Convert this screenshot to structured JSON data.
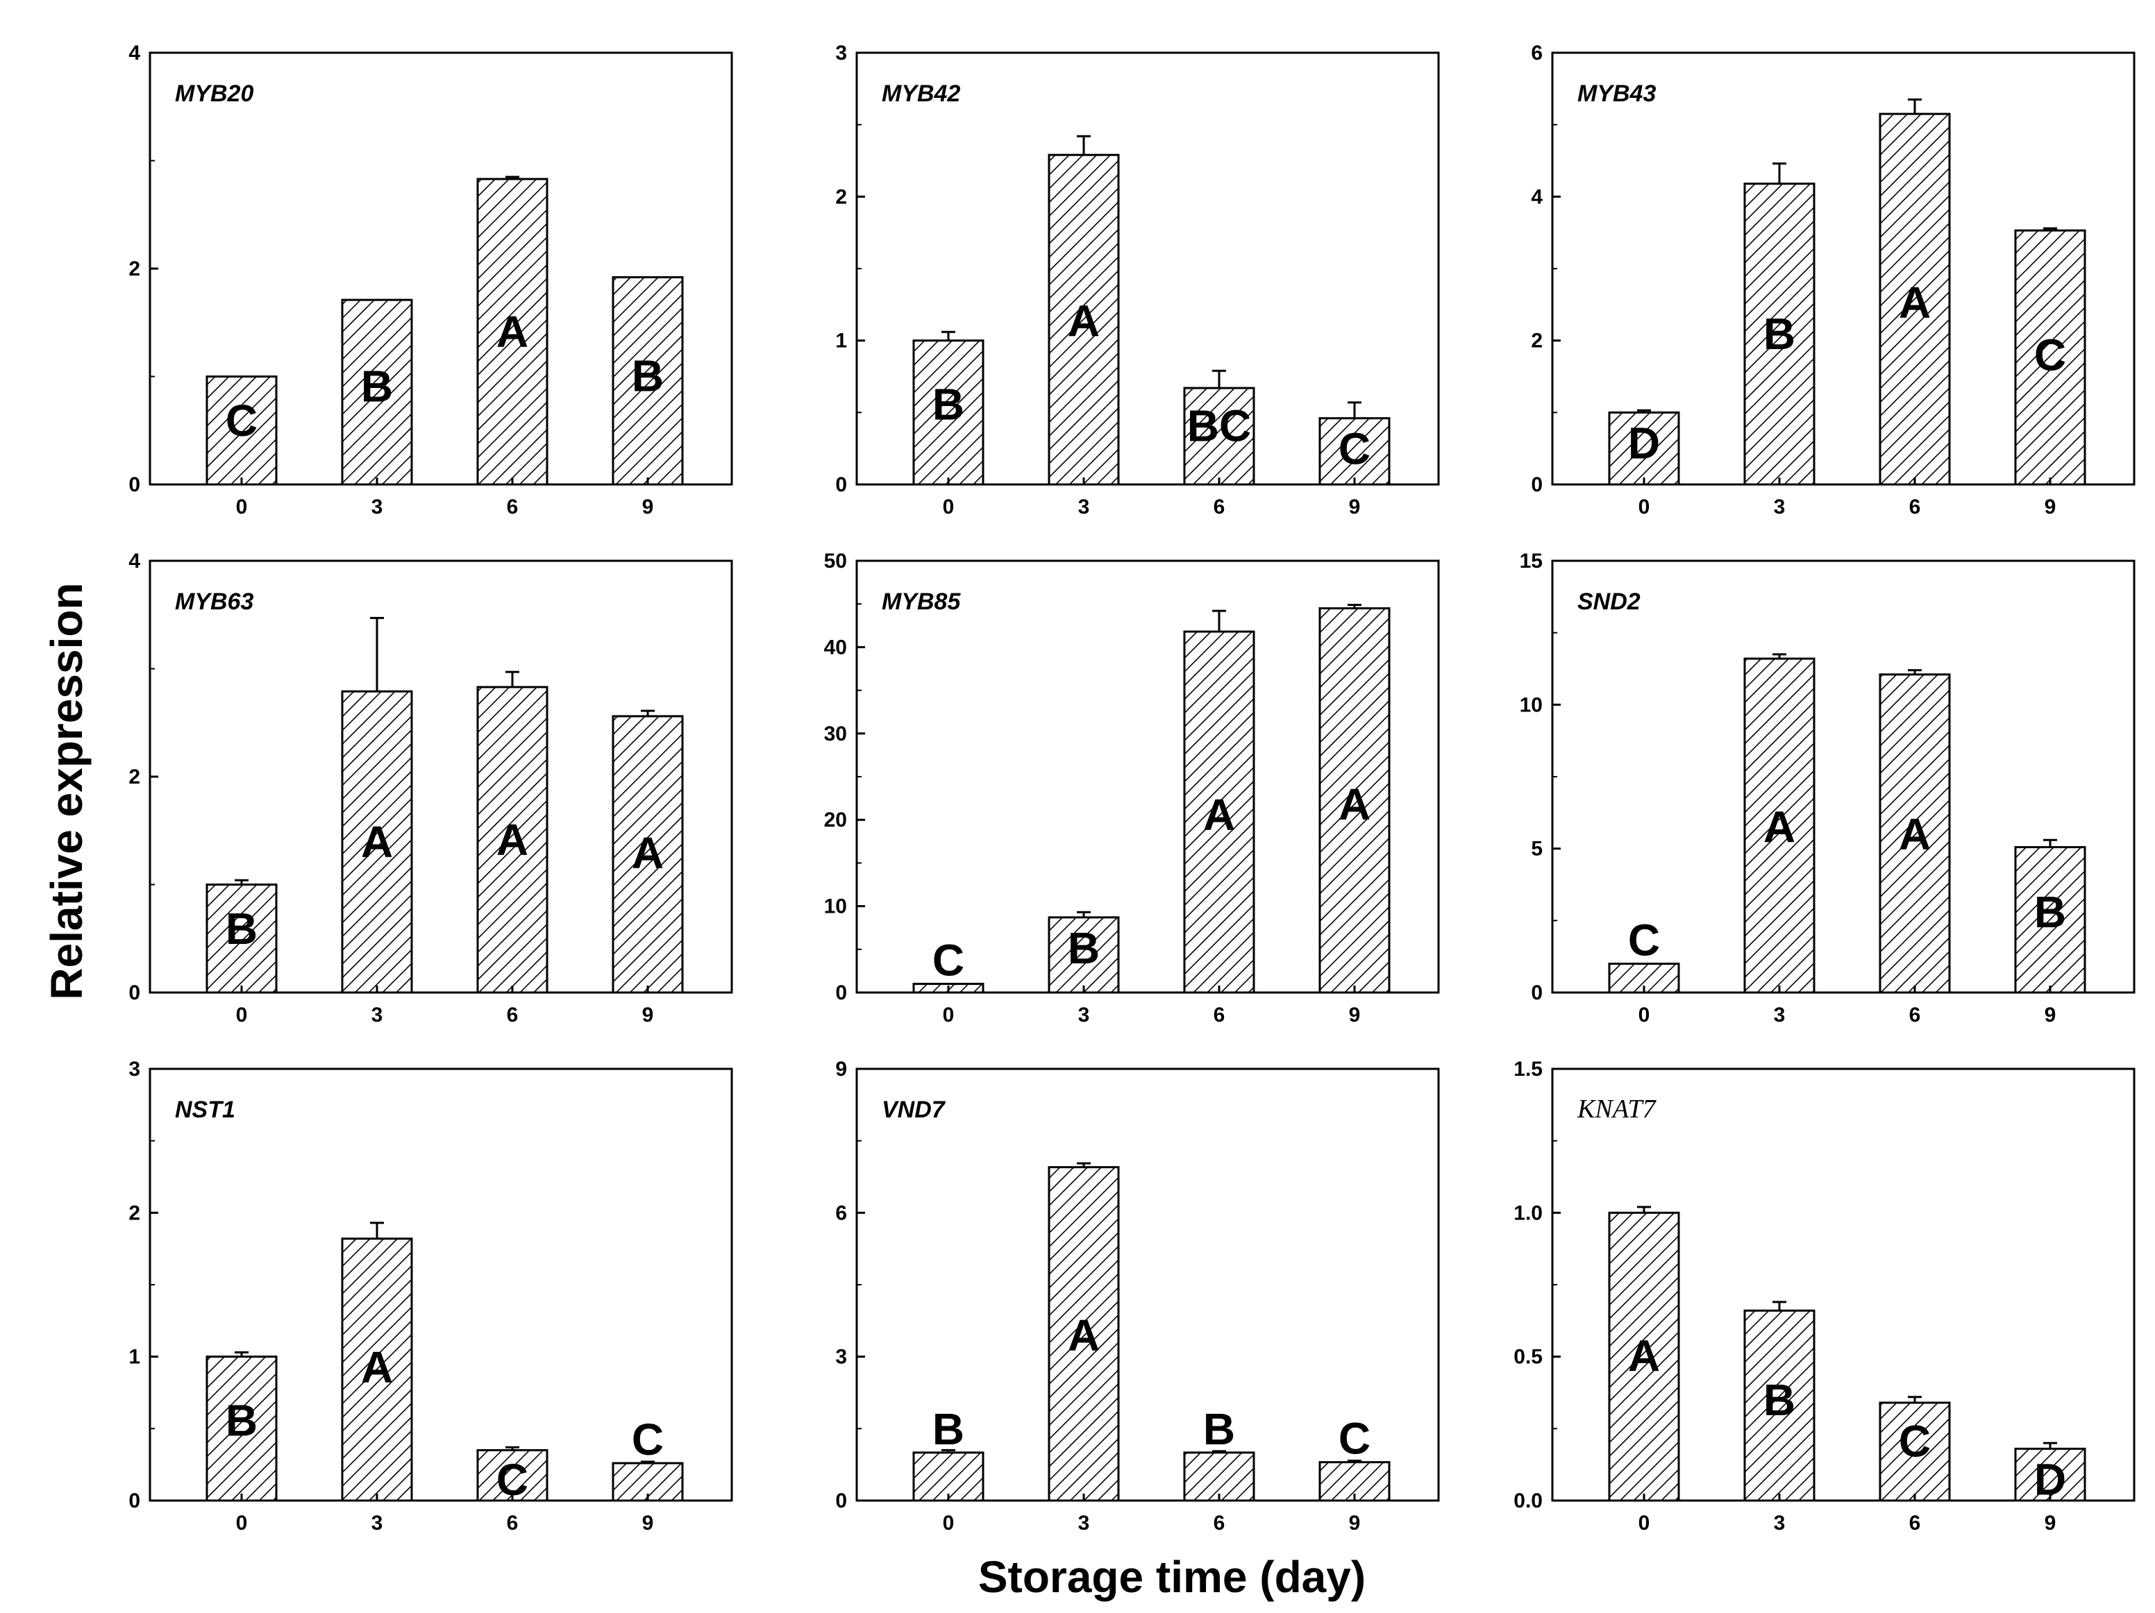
{
  "figure": {
    "ylabel": "Relative expression",
    "xlabel": "Storage time (day)"
  },
  "chart_data": [
    {
      "type": "bar",
      "title": "MYB20",
      "categories": [
        "0",
        "3",
        "6",
        "9"
      ],
      "values": [
        1.0,
        1.71,
        2.83,
        1.92
      ],
      "errors": [
        0,
        0,
        0.02,
        0
      ],
      "letters": [
        "C",
        "B",
        "A",
        "B"
      ],
      "ylim": [
        0,
        4
      ],
      "yticks": [
        0,
        2,
        4
      ],
      "ytick_labels": [
        "0",
        "2",
        "4"
      ],
      "title_style": "sans"
    },
    {
      "type": "bar",
      "title": "MYB42",
      "categories": [
        "0",
        "3",
        "6",
        "9"
      ],
      "values": [
        1.0,
        2.29,
        0.67,
        0.46
      ],
      "errors": [
        0.06,
        0.13,
        0.12,
        0.11
      ],
      "letters": [
        "B",
        "A",
        "BC",
        "C"
      ],
      "ylim": [
        0,
        3
      ],
      "yticks": [
        0,
        1,
        2,
        3
      ],
      "ytick_labels": [
        "0",
        "1",
        "2",
        "3"
      ],
      "title_style": "sans"
    },
    {
      "type": "bar",
      "title": "MYB43",
      "categories": [
        "0",
        "3",
        "6",
        "9"
      ],
      "values": [
        1.0,
        4.18,
        5.15,
        3.53
      ],
      "errors": [
        0.03,
        0.28,
        0.2,
        0.03
      ],
      "letters": [
        "D",
        "B",
        "A",
        "C"
      ],
      "ylim": [
        0,
        6
      ],
      "yticks": [
        0,
        2,
        4,
        6
      ],
      "ytick_labels": [
        "0",
        "2",
        "4",
        "6"
      ],
      "title_style": "sans"
    },
    {
      "type": "bar",
      "title": "MYB63",
      "categories": [
        "0",
        "3",
        "6",
        "9"
      ],
      "values": [
        1.0,
        2.79,
        2.83,
        2.56
      ],
      "errors": [
        0.04,
        0.68,
        0.14,
        0.05
      ],
      "letters": [
        "B",
        "A",
        "A",
        "A"
      ],
      "ylim": [
        0,
        4
      ],
      "yticks": [
        0,
        2,
        4
      ],
      "ytick_labels": [
        "0",
        "2",
        "4"
      ],
      "title_style": "sans"
    },
    {
      "type": "bar",
      "title": "MYB85",
      "categories": [
        "0",
        "3",
        "6",
        "9"
      ],
      "values": [
        1.0,
        8.7,
        41.8,
        44.5
      ],
      "errors": [
        0,
        0.6,
        2.4,
        0.4
      ],
      "letters": [
        "C",
        "B",
        "A",
        "A"
      ],
      "ylim": [
        0,
        50
      ],
      "yticks": [
        0,
        10,
        20,
        30,
        40,
        50
      ],
      "ytick_labels": [
        "0",
        "10",
        "20",
        "30",
        "40",
        "50"
      ],
      "title_style": "sans"
    },
    {
      "type": "bar",
      "title": "SND2",
      "categories": [
        "0",
        "3",
        "6",
        "9"
      ],
      "values": [
        1.0,
        11.6,
        11.05,
        5.05
      ],
      "errors": [
        0,
        0.15,
        0.15,
        0.25
      ],
      "letters": [
        "C",
        "A",
        "A",
        "B"
      ],
      "ylim": [
        0,
        15
      ],
      "yticks": [
        0,
        5,
        10,
        15
      ],
      "ytick_labels": [
        "0",
        "5",
        "10",
        "15"
      ],
      "title_style": "sans"
    },
    {
      "type": "bar",
      "title": "NST1",
      "categories": [
        "0",
        "3",
        "6",
        "9"
      ],
      "values": [
        1.0,
        1.82,
        0.35,
        0.26
      ],
      "errors": [
        0.03,
        0.11,
        0.02,
        0.01
      ],
      "letters": [
        "B",
        "A",
        "C",
        "C"
      ],
      "ylim": [
        0,
        3
      ],
      "yticks": [
        0,
        1,
        2,
        3
      ],
      "ytick_labels": [
        "0",
        "1",
        "2",
        "3"
      ],
      "title_style": "sans"
    },
    {
      "type": "bar",
      "title": "VND7",
      "categories": [
        "0",
        "3",
        "6",
        "9"
      ],
      "values": [
        1.0,
        6.95,
        1.0,
        0.8
      ],
      "errors": [
        0.05,
        0.08,
        0.03,
        0.03
      ],
      "letters": [
        "B",
        "A",
        "B",
        "C"
      ],
      "ylim": [
        0,
        9
      ],
      "yticks": [
        0,
        3,
        6,
        9
      ],
      "ytick_labels": [
        "0",
        "3",
        "6",
        "9"
      ],
      "title_style": "sans"
    },
    {
      "type": "bar",
      "title": "KNAT7",
      "categories": [
        "0",
        "3",
        "6",
        "9"
      ],
      "values": [
        1.0,
        0.66,
        0.34,
        0.18
      ],
      "errors": [
        0.02,
        0.03,
        0.02,
        0.02
      ],
      "letters": [
        "A",
        "B",
        "C",
        "D"
      ],
      "ylim": [
        0,
        1.5
      ],
      "yticks": [
        0,
        0.5,
        1.0,
        1.5
      ],
      "ytick_labels": [
        "0.0",
        "0.5",
        "1.0",
        "1.5"
      ],
      "title_style": "serif"
    }
  ]
}
